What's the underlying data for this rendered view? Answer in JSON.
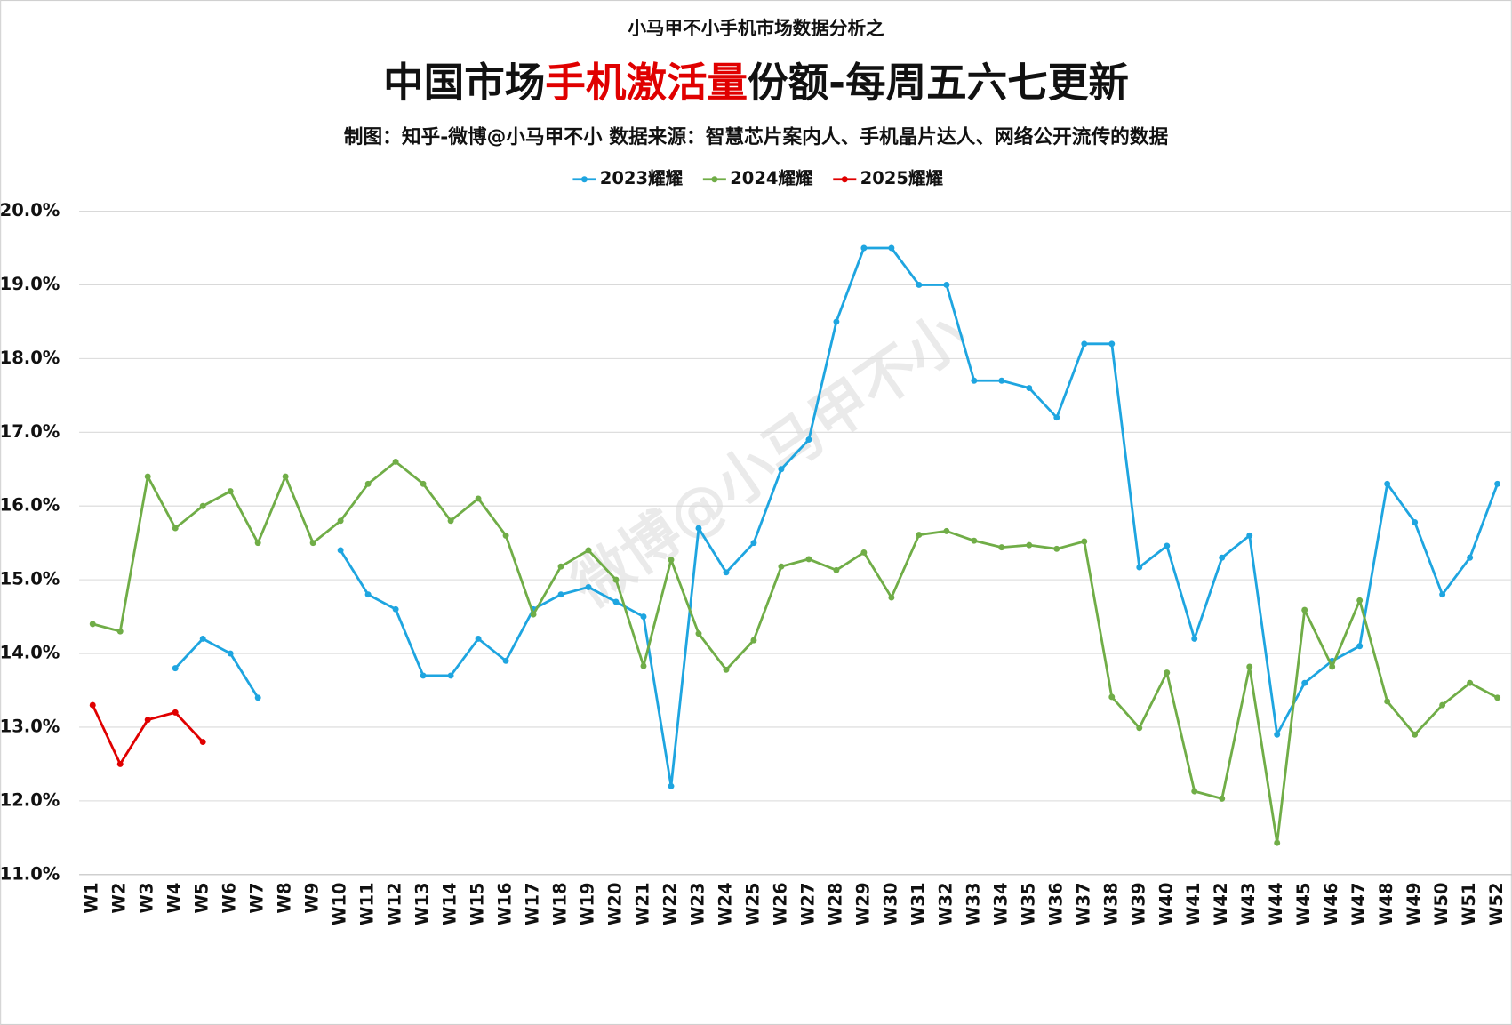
{
  "chart_data": {
    "type": "line",
    "pretitle": "小马甲不小手机市场数据分析之",
    "title_parts": [
      "中国市场",
      "手机激活量",
      "份额-每周五六七更新"
    ],
    "subtitle": "制图：知乎-微博@小马甲不小  数据来源：智慧芯片案内人、手机晶片达人、网络公开流传的数据",
    "watermark": "微博@小马甲不小",
    "categories": [
      "W1",
      "W2",
      "W3",
      "W4",
      "W5",
      "W6",
      "W7",
      "W8",
      "W9",
      "W10",
      "W11",
      "W12",
      "W13",
      "W14",
      "W15",
      "W16",
      "W17",
      "W18",
      "W19",
      "W20",
      "W21",
      "W22",
      "W23",
      "W24",
      "W25",
      "W26",
      "W27",
      "W28",
      "W29",
      "W30",
      "W31",
      "W32",
      "W33",
      "W34",
      "W35",
      "W36",
      "W37",
      "W38",
      "W39",
      "W40",
      "W41",
      "W42",
      "W43",
      "W44",
      "W45",
      "W46",
      "W47",
      "W48",
      "W49",
      "W50",
      "W51",
      "W52"
    ],
    "series": [
      {
        "name": "2023耀耀",
        "color": "#1ea5e0",
        "values": [
          null,
          null,
          null,
          13.8,
          14.2,
          14.0,
          13.4,
          null,
          null,
          15.4,
          14.8,
          14.6,
          13.7,
          13.7,
          14.2,
          13.9,
          14.6,
          14.8,
          14.9,
          14.7,
          14.5,
          12.2,
          15.7,
          15.1,
          15.5,
          16.5,
          16.9,
          18.5,
          19.5,
          19.5,
          19.0,
          19.0,
          17.7,
          17.7,
          17.6,
          17.2,
          18.2,
          18.2,
          15.17,
          15.46,
          14.2,
          15.3,
          15.6,
          12.9,
          13.6,
          13.9,
          14.1,
          16.3,
          15.78,
          14.8,
          15.3,
          16.3
        ]
      },
      {
        "name": "2024耀耀",
        "color": "#70ad47",
        "values": [
          14.4,
          14.3,
          16.4,
          15.7,
          16.0,
          16.2,
          15.5,
          16.4,
          15.5,
          15.8,
          16.3,
          16.6,
          16.3,
          15.8,
          16.1,
          15.6,
          14.53,
          15.18,
          15.4,
          15.0,
          13.83,
          15.27,
          14.27,
          13.78,
          14.18,
          15.18,
          15.28,
          15.13,
          15.37,
          14.76,
          15.61,
          15.66,
          15.53,
          15.44,
          15.47,
          15.42,
          15.52,
          13.41,
          12.99,
          13.74,
          12.13,
          12.03,
          13.82,
          11.43,
          14.59,
          13.82,
          14.72,
          13.35,
          12.9,
          13.3,
          13.6,
          13.4
        ]
      },
      {
        "name": "2025耀耀",
        "color": "#e00000",
        "values": [
          13.3,
          12.5,
          13.1,
          13.2,
          12.8,
          null,
          null,
          null,
          null,
          null,
          null,
          null,
          null,
          null,
          null,
          null,
          null,
          null,
          null,
          null,
          null,
          null,
          null,
          null,
          null,
          null,
          null,
          null,
          null,
          null,
          null,
          null,
          null,
          null,
          null,
          null,
          null,
          null,
          null,
          null,
          null,
          null,
          null,
          null,
          null,
          null,
          null,
          null,
          null,
          null,
          null,
          null
        ]
      }
    ],
    "ylim": [
      11,
      20
    ],
    "yticks": [
      {
        "value": 11,
        "label": "11.0%"
      },
      {
        "value": 12,
        "label": "12.0%"
      },
      {
        "value": 13,
        "label": "13.0%"
      },
      {
        "value": 14,
        "label": "14.0%"
      },
      {
        "value": 15,
        "label": "15.0%"
      },
      {
        "value": 16,
        "label": "16.0%"
      },
      {
        "value": 17,
        "label": "17.0%"
      },
      {
        "value": 18,
        "label": "18.0%"
      },
      {
        "value": 19,
        "label": "19.0%"
      },
      {
        "value": 20,
        "label": "20.0%"
      }
    ],
    "grid": true,
    "legend": "top"
  }
}
